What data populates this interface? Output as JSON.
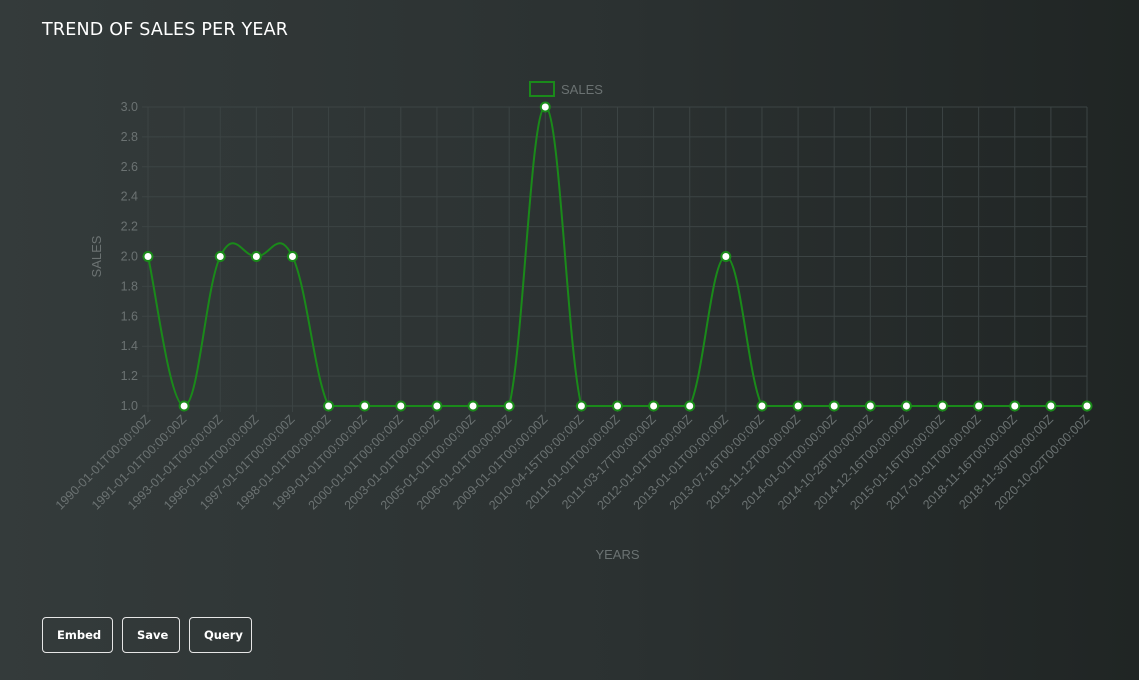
{
  "page": {
    "title": "TREND OF SALES PER YEAR"
  },
  "actions": {
    "embed_label": "Embed",
    "save_label": "Save",
    "query_label": "Query"
  },
  "colors": {
    "series": "#1a8a1a",
    "grid": "#3c4444",
    "axis_text": "#6b7272",
    "point_fill": "#ffffff"
  },
  "chart_data": {
    "type": "line",
    "title": "",
    "xlabel": "YEARS",
    "ylabel": "SALES",
    "ylim": [
      1.0,
      3.0
    ],
    "yticks": [
      "1.0",
      "1.2",
      "1.4",
      "1.6",
      "1.8",
      "2.0",
      "2.2",
      "2.4",
      "2.6",
      "2.8",
      "3.0"
    ],
    "grid": true,
    "legend": "top-center",
    "categories": [
      "1990-01-01T00:00:00Z",
      "1991-01-01T00:00:00Z",
      "1993-01-01T00:00:00Z",
      "1996-01-01T00:00:00Z",
      "1997-01-01T00:00:00Z",
      "1998-01-01T00:00:00Z",
      "1999-01-01T00:00:00Z",
      "2000-01-01T00:00:00Z",
      "2003-01-01T00:00:00Z",
      "2005-01-01T00:00:00Z",
      "2006-01-01T00:00:00Z",
      "2009-01-01T00:00:00Z",
      "2010-04-15T00:00:00Z",
      "2011-01-01T00:00:00Z",
      "2011-03-17T00:00:00Z",
      "2012-01-01T00:00:00Z",
      "2013-01-01T00:00:00Z",
      "2013-07-16T00:00:00Z",
      "2013-11-12T00:00:00Z",
      "2014-01-01T00:00:00Z",
      "2014-10-28T00:00:00Z",
      "2014-12-16T00:00:00Z",
      "2015-01-16T00:00:00Z",
      "2017-01-01T00:00:00Z",
      "2018-11-16T00:00:00Z",
      "2018-11-30T00:00:00Z",
      "2020-10-02T00:00:00Z"
    ],
    "series": [
      {
        "name": "SALES",
        "values": [
          2,
          1,
          2,
          2,
          2,
          1,
          1,
          1,
          1,
          1,
          1,
          3,
          1,
          1,
          1,
          1,
          2,
          1,
          1,
          1,
          1,
          1,
          1,
          1,
          1,
          1,
          1
        ]
      }
    ]
  }
}
